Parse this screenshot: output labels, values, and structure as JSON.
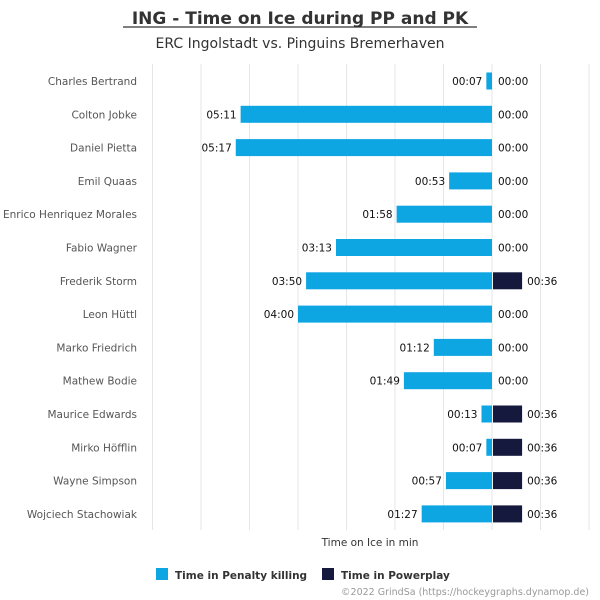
{
  "colors": {
    "pk": "#0ea5e3",
    "pp": "#14193d",
    "grid": "#e6e6e6"
  },
  "chart_data": {
    "type": "bar",
    "orientation": "horizontal-diverging",
    "title": "ING - Time on Ice during PP and PK",
    "subtitle": "ERC Ingolstadt vs. Pinguins Bremerhaven",
    "xlabel": "Time on Ice in min",
    "credit": "©2022 GrindSa (https://hockeygraphs.dynamop.de)",
    "legend_position": "bottom",
    "grid": true,
    "categories": [
      "Charles Bertrand",
      "Colton Jobke",
      "Daniel Pietta",
      "Emil Quaas",
      "Enrico Henriquez Morales",
      "Fabio Wagner",
      "Frederik Storm",
      "Leon Hüttl",
      "Marko Friedrich",
      "Mathew Bodie",
      "Maurice Edwards",
      "Mirko Höfflin",
      "Wayne Simpson",
      "Wojciech Stachowiak"
    ],
    "series": [
      {
        "name": "Time in Penalty killing",
        "direction": "left",
        "values": [
          0.1167,
          5.1833,
          5.2833,
          0.8833,
          1.9667,
          3.2167,
          3.8333,
          4.0,
          1.2,
          1.8167,
          0.2167,
          0.1167,
          0.95,
          1.45
        ],
        "labels": [
          "00:07",
          "05:11",
          "05:17",
          "00:53",
          "01:58",
          "03:13",
          "03:50",
          "04:00",
          "01:12",
          "01:49",
          "00:13",
          "00:07",
          "00:57",
          "01:27"
        ]
      },
      {
        "name": "Time in Powerplay",
        "direction": "right",
        "values": [
          0,
          0,
          0,
          0,
          0,
          0,
          0.6,
          0,
          0,
          0,
          0.6,
          0.6,
          0.6,
          0.6
        ],
        "labels": [
          "00:00",
          "00:00",
          "00:00",
          "00:00",
          "00:00",
          "00:00",
          "00:36",
          "00:00",
          "00:00",
          "00:00",
          "00:36",
          "00:36",
          "00:36",
          "00:36"
        ]
      }
    ]
  }
}
